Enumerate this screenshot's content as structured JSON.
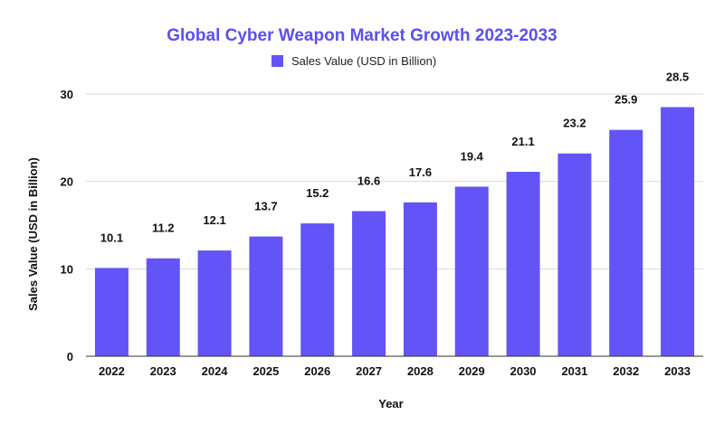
{
  "chart_data": {
    "type": "bar",
    "title": "Global Cyber Weapon Market Growth 2023-2033",
    "xlabel": "Year",
    "ylabel": "Sales Value (USD in Billion)",
    "legend": [
      "Sales Value (USD in Billion)"
    ],
    "legend_position": "top",
    "categories": [
      "2022",
      "2023",
      "2024",
      "2025",
      "2026",
      "2027",
      "2028",
      "2029",
      "2030",
      "2031",
      "2032",
      "2033"
    ],
    "series": [
      {
        "name": "Sales Value (USD in Billion)",
        "values": [
          10.1,
          11.2,
          12.1,
          13.7,
          15.2,
          16.6,
          17.6,
          19.4,
          21.1,
          23.2,
          25.9,
          28.5
        ]
      }
    ],
    "ylim": [
      0,
      30
    ],
    "yticks": [
      0,
      10,
      20,
      30
    ],
    "grid": true
  },
  "colors": {
    "bar": "#6254f6",
    "title": "#5b4ff0",
    "grid": "#d9d9d9",
    "axis": "#333333"
  }
}
